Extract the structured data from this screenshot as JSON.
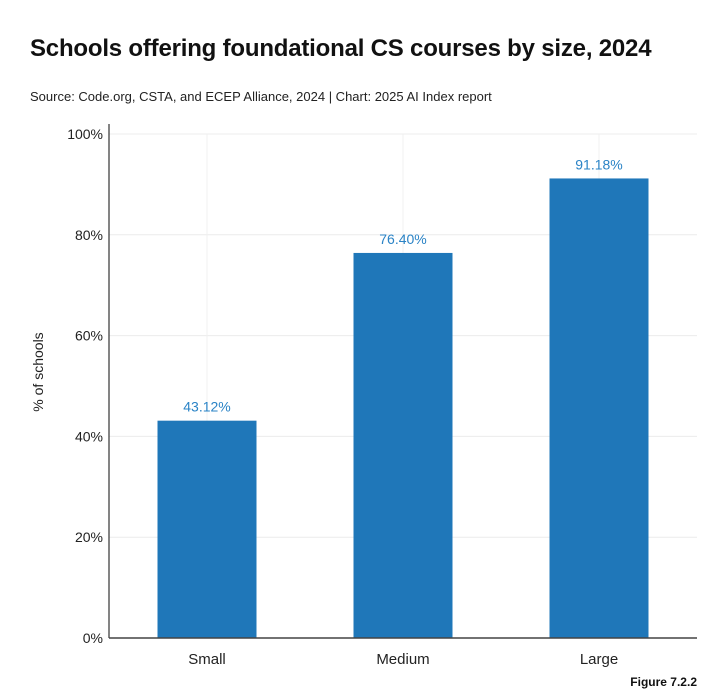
{
  "chart_data": {
    "type": "bar",
    "title": "Schools offering foundational CS courses by size, 2024",
    "subtitle": "Source: Code.org, CSTA, and ECEP Alliance, 2024 | Chart: 2025 AI Index report",
    "xlabel": "",
    "ylabel": "% of schools",
    "categories": [
      "Small",
      "Medium",
      "Large"
    ],
    "values": [
      43.12,
      76.4,
      91.18
    ],
    "data_labels": [
      "43.12%",
      "76.40%",
      "91.18%"
    ],
    "ylim": [
      0,
      100
    ],
    "yticks": [
      0,
      20,
      40,
      60,
      80,
      100
    ],
    "ytick_labels": [
      "0%",
      "20%",
      "40%",
      "60%",
      "80%",
      "100%"
    ],
    "grid": true,
    "colors": {
      "bar": "#1f77b9",
      "label": "#2a83c6"
    },
    "figure_label": "Figure 7.2.2"
  }
}
